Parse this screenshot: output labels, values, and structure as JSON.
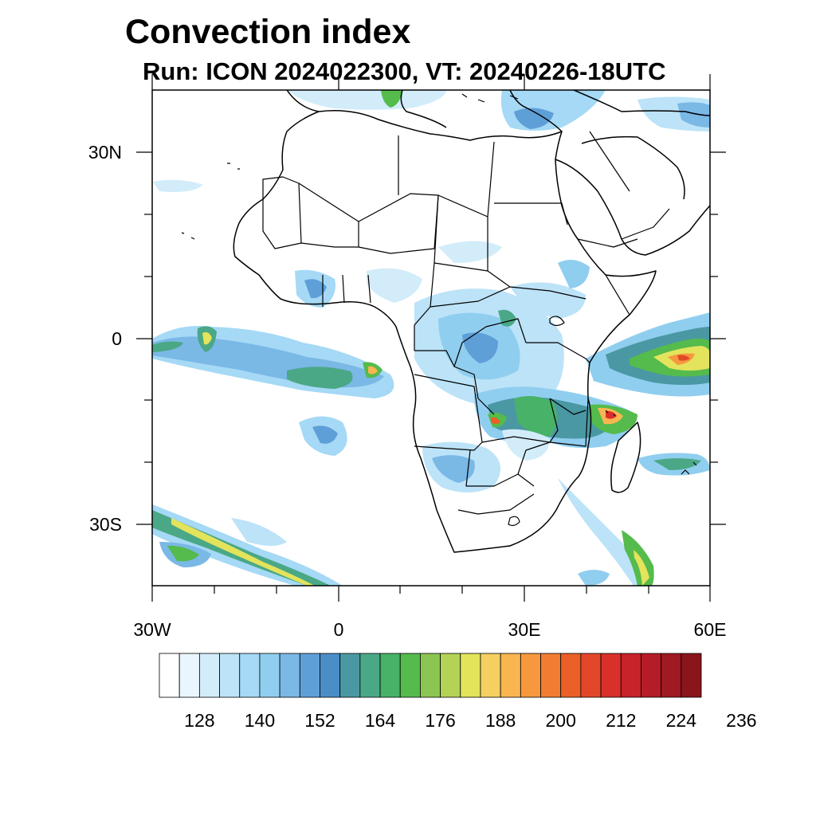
{
  "title": "Convection index",
  "subtitle": "Run: ICON 2024022300,  VT: 20240226-18UTC",
  "map": {
    "projection": "cylindrical equidistant",
    "lon_range": [
      -30,
      60
    ],
    "lat_range": [
      -40,
      40
    ],
    "x_tick_labels": [
      "30W",
      "0",
      "30E",
      "60E"
    ],
    "y_tick_labels": [
      "30N",
      "0",
      "30S"
    ],
    "field": "convection index",
    "features": [
      {
        "name": "itcz-atlantic-band",
        "desc": "band along equator to ~5S"
      },
      {
        "name": "congo-basin-cells"
      },
      {
        "name": "zambia-malawi-maximum"
      },
      {
        "name": "mozambique-channel-maximum"
      },
      {
        "name": "indian-ocean-maximum"
      },
      {
        "name": "south-atlantic-frontal-band"
      },
      {
        "name": "southwest-indian-ocean-band"
      }
    ]
  },
  "colorbar": {
    "labels": [
      "128",
      "140",
      "152",
      "164",
      "176",
      "188",
      "200",
      "212",
      "224",
      "236"
    ],
    "colors": [
      "#ffffff",
      "#eaf6fd",
      "#d2ecfa",
      "#bce3f8",
      "#a5d9f5",
      "#90ceef",
      "#7ab8e6",
      "#5f9fd8",
      "#4a8ec8",
      "#4a98a4",
      "#4aa886",
      "#48b268",
      "#54bb4c",
      "#8cc652",
      "#b4d356",
      "#e3e35c",
      "#f5d060",
      "#f9b650",
      "#f7983e",
      "#f27d32",
      "#ea6028",
      "#e2472a",
      "#d9302c",
      "#c8222a",
      "#b51c27",
      "#9f1a22",
      "#8a151b"
    ]
  }
}
